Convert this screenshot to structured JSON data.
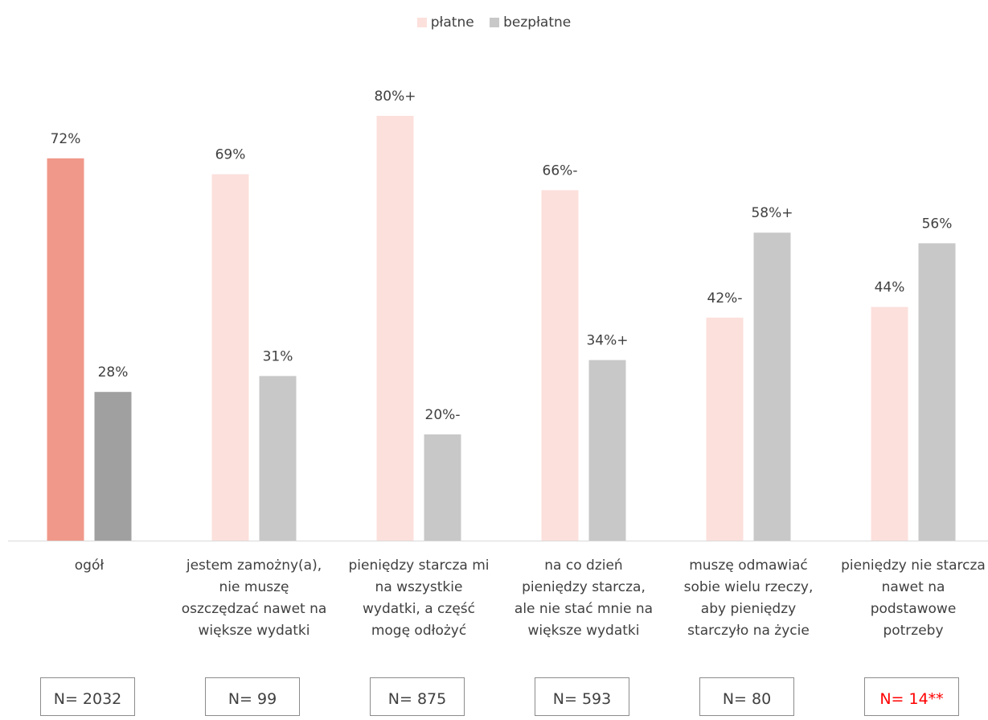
{
  "legend": [
    {
      "label": "płatne",
      "color": "#fce0dc"
    },
    {
      "label": "bezpłatne",
      "color": "#c8c8c8"
    }
  ],
  "chart_data": {
    "type": "bar",
    "categories": [
      "ogół",
      "jestem zamożny(a), nie muszę oszczędzać nawet na większe wydatki",
      "pieniędzy starcza mi na wszystkie wydatki, a część mogę odłożyć",
      "na co dzień pieniędzy starcza, ale nie stać mnie na większe wydatki",
      "muszę odmawiać sobie wielu rzeczy, aby pieniędzy starczyło na życie",
      "pieniędzy nie starcza nawet na podstawowe potrzeby"
    ],
    "category_lines": [
      [
        "ogół"
      ],
      [
        "jestem zamożny(a),",
        "nie muszę",
        "oszczędzać nawet na",
        "większe wydatki"
      ],
      [
        "pieniędzy starcza mi",
        "na wszystkie",
        "wydatki, a część",
        "mogę odłożyć"
      ],
      [
        "na co dzień",
        "pieniędzy starcza,",
        "ale nie stać mnie na",
        "większe wydatki"
      ],
      [
        "muszę odmawiać",
        "sobie wielu rzeczy,",
        "aby pieniędzy",
        "starczyło na życie"
      ],
      [
        "pieniędzy nie starcza",
        "nawet na",
        "podstawowe",
        "potrzeby"
      ]
    ],
    "series": [
      {
        "name": "płatne",
        "values": [
          72,
          69,
          80,
          66,
          42,
          44
        ],
        "labels": [
          "72%",
          "69%",
          "80%+",
          "66%-",
          "42%-",
          "44%"
        ]
      },
      {
        "name": "bezpłatne",
        "values": [
          28,
          31,
          20,
          34,
          58,
          56
        ],
        "labels": [
          "28%",
          "31%",
          "20%-",
          "34%+",
          "58%+",
          "56%"
        ]
      }
    ],
    "highlight_colors": {
      "płatne": "#f0998a",
      "bezpłatne": "#a0a0a0"
    },
    "ylim": [
      0,
      100
    ],
    "sample_sizes": [
      "N= 2032",
      "N= 99",
      "N= 875",
      "N= 593",
      "N= 80",
      "N= 14**"
    ],
    "sample_warning_color": "#ff0000"
  }
}
